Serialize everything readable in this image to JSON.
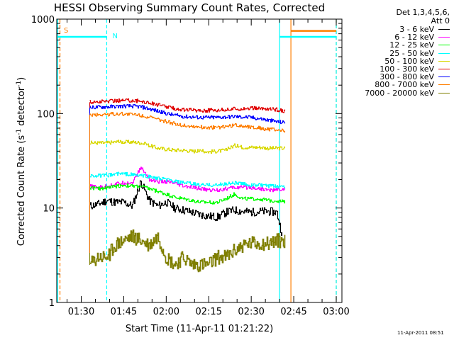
{
  "chart_data": {
    "type": "line",
    "title": "HESSI Observing Summary Count Rates, Corrected",
    "xlabel": "Start Time (11-Apr-11 01:21:22)",
    "ylabel_main": "Corrected Count Rate (s",
    "ylabel_sup1": "-1",
    "ylabel_mid": " detector",
    "ylabel_sup2": "-1",
    "ylabel_end": ")",
    "yscale": "log",
    "ylim": [
      1,
      1000
    ],
    "xlim": [
      "01:21:22",
      "03:02:00"
    ],
    "x_ticks": [
      "01:30",
      "01:45",
      "02:00",
      "02:15",
      "02:30",
      "02:45",
      "03:00"
    ],
    "y_ticks": [
      "1",
      "10",
      "100",
      "1000"
    ],
    "legend_header": [
      "Det 1,3,4,5,6,",
      "Att 0"
    ],
    "series": [
      {
        "name": "3 - 6 keV",
        "color": "#000000",
        "points": [
          [
            "01:33",
            10.5
          ],
          [
            "01:36",
            11
          ],
          [
            "01:39",
            12
          ],
          [
            "01:42",
            11.5
          ],
          [
            "01:45",
            11.5
          ],
          [
            "01:48",
            10.5
          ],
          [
            "01:51",
            19
          ],
          [
            "01:54",
            12
          ],
          [
            "01:57",
            10.5
          ],
          [
            "02:00",
            11.5
          ],
          [
            "02:03",
            10
          ],
          [
            "02:06",
            9.5
          ],
          [
            "02:09",
            9
          ],
          [
            "02:12",
            8.5
          ],
          [
            "02:15",
            8.2
          ],
          [
            "02:18",
            8
          ],
          [
            "02:21",
            9
          ],
          [
            "02:24",
            9.5
          ],
          [
            "02:27",
            9.2
          ],
          [
            "02:30",
            9
          ],
          [
            "02:33",
            9.2
          ],
          [
            "02:36",
            9.2
          ],
          [
            "02:39",
            9
          ],
          [
            "02:41",
            5
          ]
        ]
      },
      {
        "name": "6 - 12 keV",
        "color": "#ff00ff",
        "points": [
          [
            "01:33",
            17
          ],
          [
            "01:36",
            16.5
          ],
          [
            "01:39",
            17
          ],
          [
            "01:42",
            18
          ],
          [
            "01:45",
            18.5
          ],
          [
            "01:48",
            18.5
          ],
          [
            "01:51",
            27
          ],
          [
            "01:54",
            20
          ],
          [
            "01:57",
            19
          ],
          [
            "02:00",
            19
          ],
          [
            "02:03",
            18
          ],
          [
            "02:06",
            17
          ],
          [
            "02:09",
            16.5
          ],
          [
            "02:12",
            16
          ],
          [
            "02:15",
            15.5
          ],
          [
            "02:18",
            15.5
          ],
          [
            "02:21",
            16
          ],
          [
            "02:24",
            16.5
          ],
          [
            "02:27",
            16.5
          ],
          [
            "02:30",
            16.5
          ],
          [
            "02:33",
            16
          ],
          [
            "02:36",
            15.5
          ],
          [
            "02:39",
            15.5
          ],
          [
            "02:42",
            16
          ]
        ]
      },
      {
        "name": "12 - 25 keV",
        "color": "#00ff00",
        "points": [
          [
            "01:33",
            16.5
          ],
          [
            "01:36",
            16
          ],
          [
            "01:39",
            16.5
          ],
          [
            "01:42",
            17
          ],
          [
            "01:45",
            17.5
          ],
          [
            "01:48",
            17
          ],
          [
            "01:51",
            17
          ],
          [
            "01:54",
            16
          ],
          [
            "01:57",
            15
          ],
          [
            "02:00",
            14
          ],
          [
            "02:03",
            13
          ],
          [
            "02:06",
            12.5
          ],
          [
            "02:09",
            12
          ],
          [
            "02:12",
            11.5
          ],
          [
            "02:15",
            11.5
          ],
          [
            "02:18",
            11.5
          ],
          [
            "02:21",
            12.5
          ],
          [
            "02:24",
            14
          ],
          [
            "02:27",
            12.5
          ],
          [
            "02:30",
            12.5
          ],
          [
            "02:33",
            12.5
          ],
          [
            "02:36",
            12
          ],
          [
            "02:39",
            12
          ],
          [
            "02:42",
            11.5
          ]
        ]
      },
      {
        "name": "25 - 50 keV",
        "color": "#00ffff",
        "points": [
          [
            "01:33",
            22
          ],
          [
            "01:36",
            22
          ],
          [
            "01:39",
            22
          ],
          [
            "01:42",
            23
          ],
          [
            "01:45",
            23
          ],
          [
            "01:48",
            22.5
          ],
          [
            "01:51",
            22
          ],
          [
            "01:54",
            21.5
          ],
          [
            "01:57",
            20.5
          ],
          [
            "02:00",
            20
          ],
          [
            "02:03",
            19
          ],
          [
            "02:06",
            18.5
          ],
          [
            "02:09",
            18
          ],
          [
            "02:12",
            17.5
          ],
          [
            "02:15",
            17.5
          ],
          [
            "02:18",
            17.5
          ],
          [
            "02:21",
            18
          ],
          [
            "02:24",
            18.5
          ],
          [
            "02:27",
            18
          ],
          [
            "02:30",
            17.5
          ],
          [
            "02:33",
            17.5
          ],
          [
            "02:36",
            17
          ],
          [
            "02:39",
            17
          ],
          [
            "02:42",
            17
          ]
        ]
      },
      {
        "name": "50 - 100 keV",
        "color": "#d8d800",
        "points": [
          [
            "01:33",
            49
          ],
          [
            "01:36",
            49
          ],
          [
            "01:39",
            49
          ],
          [
            "01:42",
            50
          ],
          [
            "01:45",
            50
          ],
          [
            "01:48",
            50
          ],
          [
            "01:51",
            49
          ],
          [
            "01:54",
            46
          ],
          [
            "01:57",
            43
          ],
          [
            "02:00",
            42
          ],
          [
            "02:03",
            41
          ],
          [
            "02:06",
            41
          ],
          [
            "02:09",
            40
          ],
          [
            "02:12",
            40
          ],
          [
            "02:15",
            39.5
          ],
          [
            "02:18",
            40
          ],
          [
            "02:21",
            41
          ],
          [
            "02:24",
            46
          ],
          [
            "02:27",
            44
          ],
          [
            "02:30",
            44
          ],
          [
            "02:33",
            44
          ],
          [
            "02:36",
            43
          ],
          [
            "02:39",
            43
          ],
          [
            "02:42",
            43
          ]
        ]
      },
      {
        "name": "100 - 300 keV",
        "color": "#e00000",
        "points": [
          [
            "01:33",
            132
          ],
          [
            "01:36",
            133
          ],
          [
            "01:39",
            135
          ],
          [
            "01:42",
            137
          ],
          [
            "01:45",
            138
          ],
          [
            "01:48",
            138
          ],
          [
            "01:51",
            135
          ],
          [
            "01:54",
            130
          ],
          [
            "01:57",
            124
          ],
          [
            "02:00",
            118
          ],
          [
            "02:03",
            113
          ],
          [
            "02:06",
            110
          ],
          [
            "02:09",
            109
          ],
          [
            "02:12",
            108
          ],
          [
            "02:15",
            108
          ],
          [
            "02:18",
            109
          ],
          [
            "02:21",
            110
          ],
          [
            "02:24",
            112
          ],
          [
            "02:27",
            113
          ],
          [
            "02:30",
            114
          ],
          [
            "02:33",
            113
          ],
          [
            "02:36",
            112
          ],
          [
            "02:39",
            110
          ],
          [
            "02:42",
            106
          ]
        ]
      },
      {
        "name": "300 - 800 keV",
        "color": "#0000ff",
        "points": [
          [
            "01:33",
            116
          ],
          [
            "01:36",
            117
          ],
          [
            "01:39",
            118
          ],
          [
            "01:42",
            119
          ],
          [
            "01:45",
            120
          ],
          [
            "01:48",
            120
          ],
          [
            "01:51",
            118
          ],
          [
            "01:54",
            112
          ],
          [
            "01:57",
            106
          ],
          [
            "02:00",
            100
          ],
          [
            "02:03",
            96
          ],
          [
            "02:06",
            93
          ],
          [
            "02:09",
            92
          ],
          [
            "02:12",
            91
          ],
          [
            "02:15",
            91
          ],
          [
            "02:18",
            91
          ],
          [
            "02:21",
            92
          ],
          [
            "02:24",
            93
          ],
          [
            "02:27",
            92
          ],
          [
            "02:30",
            91
          ],
          [
            "02:33",
            88
          ],
          [
            "02:36",
            85
          ],
          [
            "02:39",
            82
          ],
          [
            "02:42",
            80
          ]
        ]
      },
      {
        "name": "800 - 7000 keV",
        "color": "#ff7f00",
        "points": [
          [
            "01:33",
            97
          ],
          [
            "01:36",
            97
          ],
          [
            "01:39",
            98
          ],
          [
            "01:42",
            99
          ],
          [
            "01:45",
            99
          ],
          [
            "01:48",
            98
          ],
          [
            "01:51",
            96
          ],
          [
            "01:54",
            91
          ],
          [
            "01:57",
            86
          ],
          [
            "02:00",
            82
          ],
          [
            "02:03",
            78
          ],
          [
            "02:06",
            75
          ],
          [
            "02:09",
            73
          ],
          [
            "02:12",
            72
          ],
          [
            "02:15",
            71
          ],
          [
            "02:18",
            71
          ],
          [
            "02:21",
            73
          ],
          [
            "02:24",
            75
          ],
          [
            "02:27",
            74
          ],
          [
            "02:30",
            72
          ],
          [
            "02:33",
            70
          ],
          [
            "02:36",
            68
          ],
          [
            "02:39",
            67
          ],
          [
            "02:42",
            65
          ]
        ]
      },
      {
        "name": "7000 - 20000 keV",
        "color": "#7f7f00",
        "points": [
          [
            "01:33",
            2.5
          ],
          [
            "01:36",
            3
          ],
          [
            "01:39",
            3
          ],
          [
            "01:42",
            4
          ],
          [
            "01:45",
            4.5
          ],
          [
            "01:48",
            5
          ],
          [
            "01:51",
            4.5
          ],
          [
            "01:54",
            4
          ],
          [
            "01:57",
            5
          ],
          [
            "02:00",
            3
          ],
          [
            "02:03",
            2.5
          ],
          [
            "02:06",
            3
          ],
          [
            "02:09",
            2.5
          ],
          [
            "02:12",
            2.5
          ],
          [
            "02:15",
            2.5
          ],
          [
            "02:18",
            3
          ],
          [
            "02:21",
            3
          ],
          [
            "02:24",
            3.5
          ],
          [
            "02:27",
            4
          ],
          [
            "02:30",
            4.2
          ],
          [
            "02:33",
            4.2
          ],
          [
            "02:36",
            4.2
          ],
          [
            "02:39",
            4.5
          ],
          [
            "02:42",
            4.5
          ]
        ]
      }
    ],
    "flags": [
      {
        "label": "S",
        "color": "#ff7f00",
        "from": "01:21:22",
        "to": "01:22:30",
        "level": 650
      },
      {
        "label": "N",
        "color": "#00ffff",
        "from": "01:21:22",
        "to": "01:39:00",
        "level": 650
      },
      {
        "label": "",
        "color": "#00ffff",
        "from": "02:40:00",
        "to": "03:00:00",
        "level": 650
      },
      {
        "label": "",
        "color": "#ff7f00",
        "from": "02:44:00",
        "to": "03:00:00",
        "level": 750
      }
    ],
    "vertical_markers": [
      {
        "time": "01:22:30",
        "color": "#ff7f00",
        "style": "dashed"
      },
      {
        "time": "01:21:40",
        "color": "#00ffff",
        "style": "solid"
      },
      {
        "time": "01:39:00",
        "color": "#00ffff",
        "style": "dashed"
      },
      {
        "time": "02:40:00",
        "color": "#00ffff",
        "style": "solid"
      },
      {
        "time": "02:44:00",
        "color": "#ff7f00",
        "style": "solid"
      },
      {
        "time": "03:00:00",
        "color": "#ff7f00",
        "style": "dashed"
      },
      {
        "time": "03:00:00",
        "color": "#00ffff",
        "style": "dashed"
      }
    ]
  },
  "timestamp": "11-Apr-2011 08:51"
}
